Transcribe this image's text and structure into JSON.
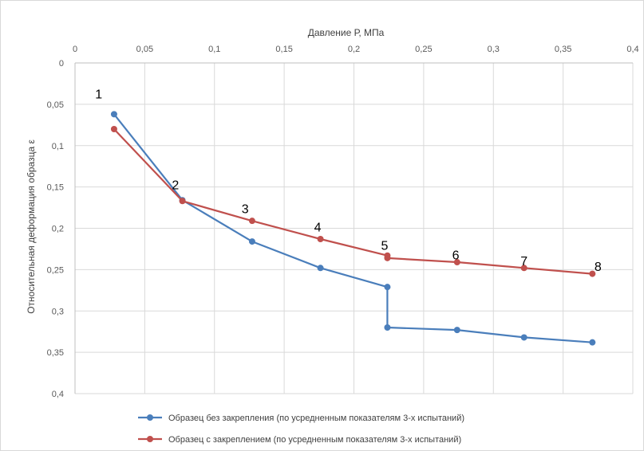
{
  "chart_data": {
    "type": "line",
    "xlabel": "Давление Р, МПа",
    "ylabel": "Относительная деформация образца ε",
    "xlim": [
      0,
      0.4
    ],
    "ylim": [
      0,
      0.4
    ],
    "y_inverted": true,
    "x_axis_position": "top",
    "grid": true,
    "legend_position": "bottom",
    "x_ticks": [
      "0",
      "0,05",
      "0,1",
      "0,15",
      "0,2",
      "0,25",
      "0,3",
      "0,35",
      "0,4"
    ],
    "y_ticks": [
      "0",
      "0,05",
      "0,1",
      "0,15",
      "0,2",
      "0,25",
      "0,3",
      "0,35",
      "0,4"
    ],
    "series": [
      {
        "name": "Образец без закрепления (по усредненным показателям 3-х испытаний)",
        "color": "#4a7ebb",
        "points": [
          [
            0.028,
            0.062
          ],
          [
            0.077,
            0.166
          ],
          [
            0.127,
            0.216
          ],
          [
            0.176,
            0.248
          ],
          [
            0.224,
            0.271
          ],
          [
            0.224,
            0.32
          ],
          [
            0.274,
            0.323
          ],
          [
            0.322,
            0.332
          ],
          [
            0.371,
            0.338
          ]
        ]
      },
      {
        "name": "Образец с закреплением (по усредненным показателям 3-х испытаний)",
        "color": "#c0504d",
        "points": [
          [
            0.028,
            0.08
          ],
          [
            0.077,
            0.167
          ],
          [
            0.127,
            0.191
          ],
          [
            0.176,
            0.213
          ],
          [
            0.224,
            0.233
          ],
          [
            0.224,
            0.236
          ],
          [
            0.274,
            0.241
          ],
          [
            0.322,
            0.248
          ],
          [
            0.371,
            0.255
          ]
        ]
      }
    ],
    "point_labels": [
      {
        "text": "1",
        "x": 0.017,
        "y": 0.037
      },
      {
        "text": "2",
        "x": 0.072,
        "y": 0.147
      },
      {
        "text": "3",
        "x": 0.122,
        "y": 0.176
      },
      {
        "text": "4",
        "x": 0.174,
        "y": 0.198
      },
      {
        "text": "5",
        "x": 0.222,
        "y": 0.22
      },
      {
        "text": "6",
        "x": 0.273,
        "y": 0.232
      },
      {
        "text": "7",
        "x": 0.322,
        "y": 0.239
      },
      {
        "text": "8",
        "x": 0.375,
        "y": 0.246
      }
    ]
  }
}
